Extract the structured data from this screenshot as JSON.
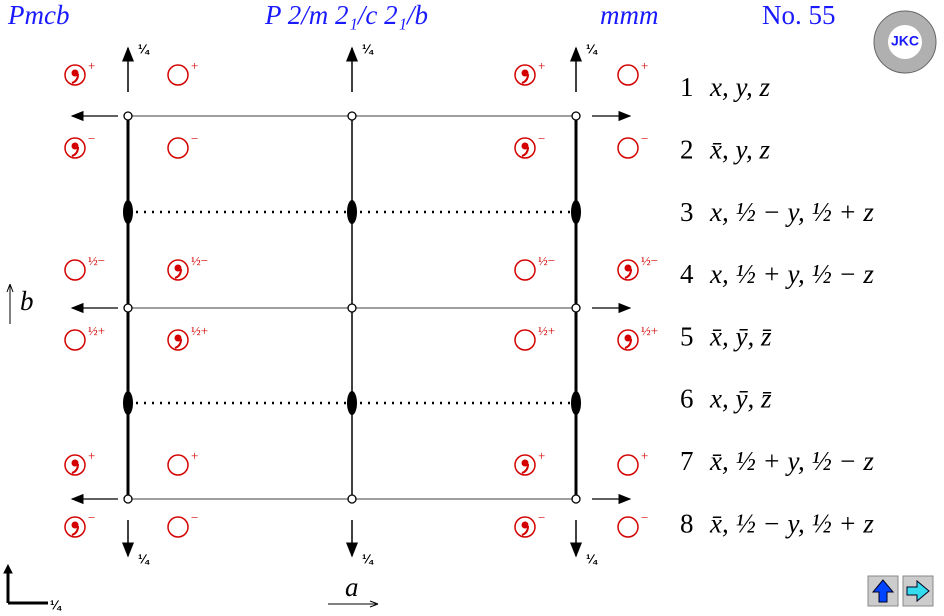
{
  "header": {
    "symbol": "Pmcb",
    "full_symbol": "P 2/m 2₁/c 2₁/b",
    "point_group": "mmm",
    "number": "No. 55",
    "logo": "JKC"
  },
  "circle_rows": [
    [
      "+",
      "+",
      "+",
      "+"
    ],
    [
      "−",
      "−",
      "−",
      "−"
    ],
    [
      "½−",
      "½−",
      "½−",
      "½−"
    ],
    [
      "½+",
      "½+",
      "½+",
      "½+"
    ],
    [
      "+",
      "+",
      "+",
      "+"
    ],
    [
      "−",
      "−",
      "−",
      "−"
    ]
  ],
  "top_heights": [
    "¼",
    "¼",
    "¼"
  ],
  "bottom_heights": [
    "¼",
    "¼",
    "¼"
  ],
  "origin_height": "¼",
  "axis_b": "b",
  "axis_a": "a",
  "positions": [
    {
      "number": "1",
      "coords": "x, y, z"
    },
    {
      "number": "2",
      "coords": "x̄, y, z"
    },
    {
      "number": "3",
      "coords": "x, ½ − y, ½ + z"
    },
    {
      "number": "4",
      "coords": "x, ½ + y, ½ − z"
    },
    {
      "number": "5",
      "coords": "x̄, ȳ, z̄"
    },
    {
      "number": "6",
      "coords": "x, ȳ, z̄"
    },
    {
      "number": "7",
      "coords": "x̄, ½ + y, ½ − z"
    },
    {
      "number": "8",
      "coords": "x̄, ½ − y, ½ + z"
    }
  ]
}
